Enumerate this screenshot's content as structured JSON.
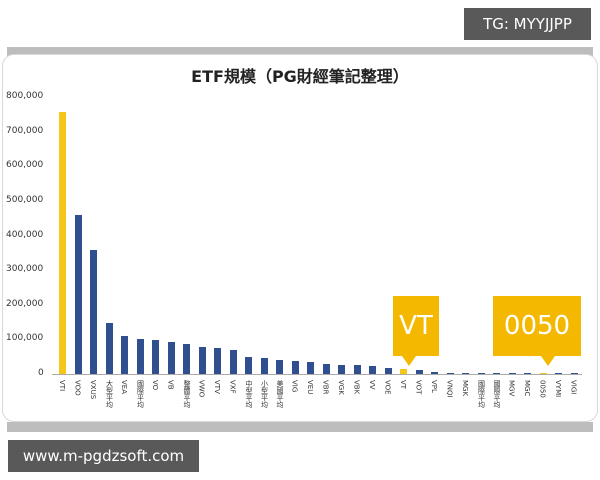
{
  "watermarks": {
    "top_right": "TG: MYYJJPP",
    "bottom_left": "www.m-pgdzsoft.com"
  },
  "colors": {
    "highlight": "#f5c518",
    "bar": "#2f4f8f",
    "callout": "#f5b800"
  },
  "callouts": {
    "vt": "VT",
    "tw0050": "0050"
  },
  "chart_data": {
    "type": "bar",
    "title": "ETF規模（PG財經筆記整理）",
    "xlabel": "",
    "ylabel": "",
    "ylim": [
      0,
      800000
    ],
    "y_ticks": [
      "0",
      "100,000",
      "200,000",
      "300,000",
      "400,000",
      "500,000",
      "600,000",
      "700,000",
      "800,000"
    ],
    "grid": false,
    "legend": "none",
    "categories": [
      "VTI",
      "VOO",
      "VXUS",
      "大型平均",
      "VEA",
      "國際平均",
      "VO",
      "VB",
      "整體平均",
      "VWO",
      "VTV",
      "VXF",
      "中型平均",
      "小型平均",
      "美國平均",
      "VIG",
      "VEU",
      "VBR",
      "VGK",
      "VBK",
      "VV",
      "VOE",
      "VT",
      "VOT",
      "VPL",
      "VNQI",
      "MGK",
      "國際平均",
      "國際平均",
      "MGV",
      "MGC",
      "0050",
      "VYMI",
      "VIGI"
    ],
    "values": [
      757000,
      459000,
      358000,
      147000,
      110000,
      101000,
      98000,
      92000,
      86000,
      78000,
      74000,
      69000,
      49000,
      47000,
      40000,
      38000,
      35000,
      30000,
      27000,
      25000,
      22000,
      17000,
      15000,
      12000,
      6000,
      4000,
      3000,
      2500,
      2000,
      1500,
      1200,
      900,
      800,
      600
    ],
    "highlighted": [
      "VTI",
      "VT",
      "0050"
    ],
    "annotations": [
      "VT",
      "0050"
    ]
  }
}
